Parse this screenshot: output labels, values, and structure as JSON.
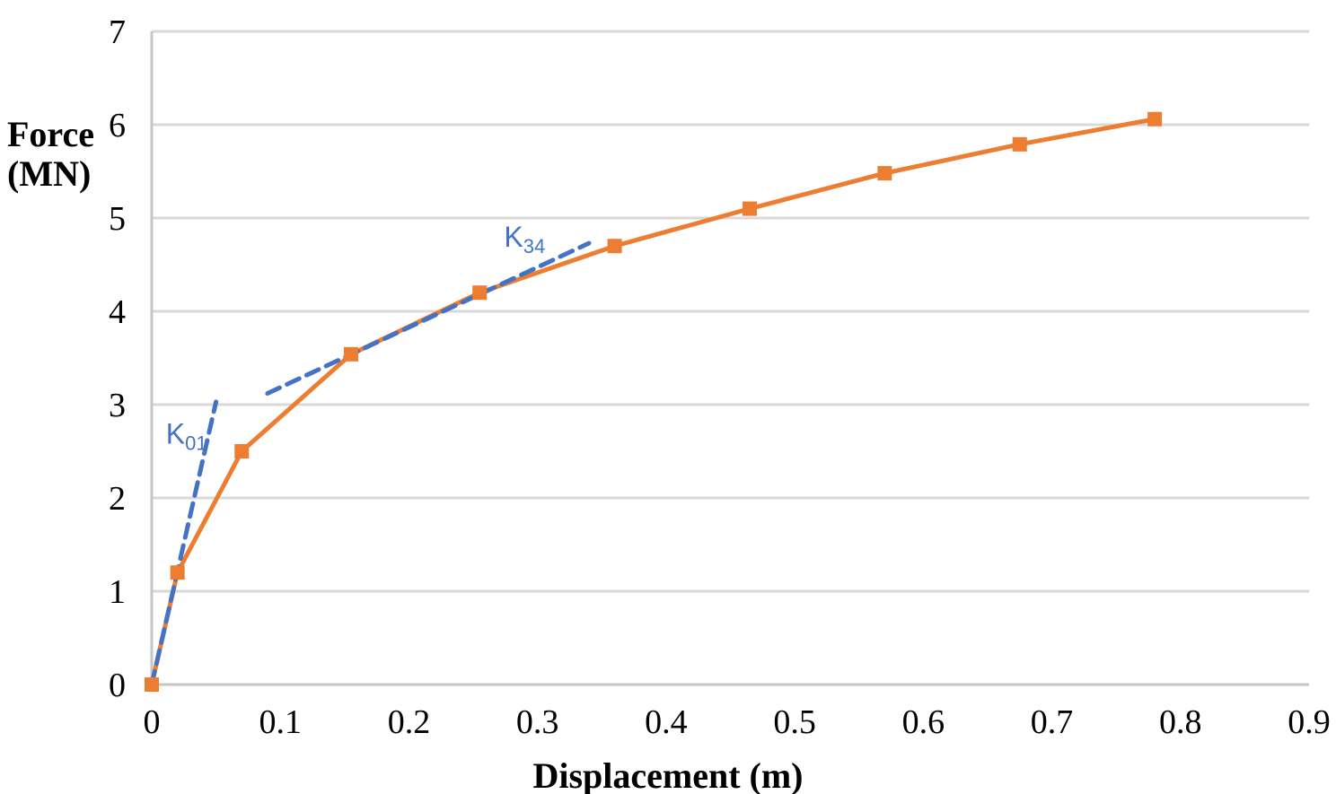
{
  "chart_data": {
    "type": "line",
    "xlabel": "Displacement (m)",
    "ylabel_lines": [
      "Force",
      "(MN)"
    ],
    "xlim": [
      0,
      0.9
    ],
    "ylim": [
      0,
      7
    ],
    "x_ticks": [
      {
        "value": 0,
        "label": "0"
      },
      {
        "value": 0.1,
        "label": "0.1"
      },
      {
        "value": 0.2,
        "label": "0.2"
      },
      {
        "value": 0.3,
        "label": "0.3"
      },
      {
        "value": 0.4,
        "label": "0.4"
      },
      {
        "value": 0.5,
        "label": "0.5"
      },
      {
        "value": 0.6,
        "label": "0.6"
      },
      {
        "value": 0.7,
        "label": "0.7"
      },
      {
        "value": 0.8,
        "label": "0.8"
      },
      {
        "value": 0.9,
        "label": "0.9"
      }
    ],
    "y_ticks": [
      {
        "value": 0,
        "label": "0"
      },
      {
        "value": 1,
        "label": "1"
      },
      {
        "value": 2,
        "label": "2"
      },
      {
        "value": 3,
        "label": "3"
      },
      {
        "value": 4,
        "label": "4"
      },
      {
        "value": 5,
        "label": "5"
      },
      {
        "value": 6,
        "label": "6"
      },
      {
        "value": 7,
        "label": "7"
      }
    ],
    "grid": {
      "horizontal": true,
      "vertical": false
    },
    "legend": "none",
    "series": [
      {
        "name": "force-displacement-curve",
        "style": "solid-markers",
        "marker": "square",
        "color": "#ED7D31",
        "points": [
          [
            0,
            0
          ],
          [
            0.02,
            1.2
          ],
          [
            0.07,
            2.5
          ],
          [
            0.155,
            3.54
          ],
          [
            0.255,
            4.2
          ],
          [
            0.36,
            4.7
          ],
          [
            0.465,
            5.1
          ],
          [
            0.57,
            5.48
          ],
          [
            0.675,
            5.79
          ],
          [
            0.78,
            6.06
          ]
        ]
      },
      {
        "name": "K01-stiffness-line",
        "style": "dashed",
        "color": "#4472C4",
        "points": [
          [
            0,
            0
          ],
          [
            0.05,
            3.03
          ]
        ]
      },
      {
        "name": "K34-stiffness-line",
        "style": "dashed",
        "color": "#4472C4",
        "points": [
          [
            0.09,
            3.12
          ],
          [
            0.34,
            4.73
          ]
        ]
      }
    ],
    "annotations": [
      {
        "name": "K01-label",
        "main": "K",
        "sub": "01",
        "x": 0.011,
        "y": 2.58,
        "color": "#4472C4"
      },
      {
        "name": "K34-label",
        "main": "K",
        "sub": "34",
        "x": 0.274,
        "y": 4.69,
        "color": "#4472C4"
      }
    ],
    "colors": {
      "grid": "#D9D9D9",
      "axis": "#C6C6C6",
      "curve": "#ED7D31",
      "stiffness": "#4472C4",
      "text": "#000000",
      "background": "#FFFFFF"
    }
  }
}
